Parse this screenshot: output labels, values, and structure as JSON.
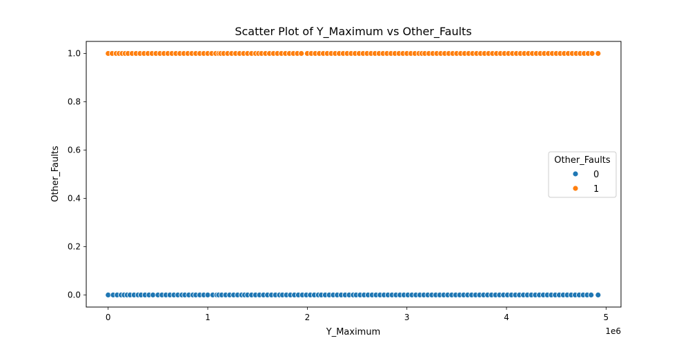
{
  "chart_data": {
    "type": "scatter",
    "title": "Scatter Plot of Y_Maximum vs Other_Faults",
    "xlabel": "Y_Maximum",
    "ylabel": "Other_Faults",
    "x_offset_label": "1e6",
    "xlim": [
      -220000,
      5150000
    ],
    "ylim": [
      -0.05,
      1.05
    ],
    "x_ticks": [
      0,
      1000000,
      2000000,
      3000000,
      4000000,
      5000000
    ],
    "x_tick_labels": [
      "0",
      "1",
      "2",
      "3",
      "4",
      "5"
    ],
    "y_ticks": [
      0.0,
      0.2,
      0.4,
      0.6,
      0.8,
      1.0
    ],
    "y_tick_labels": [
      "0.0",
      "0.2",
      "0.4",
      "0.6",
      "0.8",
      "1.0"
    ],
    "grid": false,
    "legend": {
      "title": "Other_Faults",
      "placement": "center-right",
      "entries": [
        {
          "label": "0",
          "color": "#1f77b4"
        },
        {
          "label": "1",
          "color": "#ff7f0e"
        }
      ]
    },
    "x_range_observed": [
      0,
      4920000
    ],
    "series": [
      {
        "name": "0",
        "color": "#1f77b4",
        "y": 0,
        "x": [
          0,
          50000,
          90000,
          130000,
          160000,
          190000,
          220000,
          260000,
          300000,
          330000,
          370000,
          410000,
          450000,
          500000,
          540000,
          580000,
          620000,
          660000,
          700000,
          740000,
          770000,
          810000,
          850000,
          880000,
          920000,
          960000,
          1000000,
          1050000,
          1090000,
          1110000,
          1140000,
          1180000,
          1220000,
          1260000,
          1300000,
          1340000,
          1370000,
          1400000,
          1440000,
          1480000,
          1520000,
          1560000,
          1600000,
          1640000,
          1680000,
          1720000,
          1750000,
          1790000,
          1830000,
          1870000,
          1910000,
          1950000,
          1990000,
          2030000,
          2070000,
          2110000,
          2140000,
          2180000,
          2220000,
          2260000,
          2300000,
          2340000,
          2380000,
          2420000,
          2460000,
          2490000,
          2530000,
          2570000,
          2610000,
          2650000,
          2690000,
          2730000,
          2770000,
          2810000,
          2850000,
          2890000,
          2930000,
          2970000,
          3010000,
          3050000,
          3090000,
          3130000,
          3170000,
          3210000,
          3250000,
          3290000,
          3330000,
          3370000,
          3410000,
          3450000,
          3490000,
          3530000,
          3570000,
          3610000,
          3650000,
          3690000,
          3730000,
          3770000,
          3810000,
          3850000,
          3890000,
          3930000,
          3970000,
          4010000,
          4050000,
          4090000,
          4130000,
          4170000,
          4210000,
          4250000,
          4290000,
          4330000,
          4370000,
          4410000,
          4450000,
          4490000,
          4530000,
          4570000,
          4610000,
          4650000,
          4690000,
          4730000,
          4770000,
          4810000,
          4850000,
          4920000
        ]
      },
      {
        "name": "1",
        "color": "#ff7f0e",
        "y": 1,
        "x": [
          0,
          40000,
          80000,
          110000,
          140000,
          170000,
          200000,
          240000,
          280000,
          320000,
          360000,
          400000,
          440000,
          480000,
          520000,
          560000,
          600000,
          640000,
          680000,
          720000,
          760000,
          800000,
          840000,
          880000,
          920000,
          960000,
          1000000,
          1040000,
          1080000,
          1110000,
          1130000,
          1160000,
          1200000,
          1240000,
          1280000,
          1320000,
          1360000,
          1400000,
          1440000,
          1480000,
          1510000,
          1540000,
          1580000,
          1620000,
          1660000,
          1700000,
          1740000,
          1780000,
          1820000,
          1860000,
          1900000,
          1940000,
          2000000,
          2040000,
          2080000,
          2120000,
          2160000,
          2200000,
          2240000,
          2280000,
          2320000,
          2360000,
          2400000,
          2440000,
          2480000,
          2520000,
          2560000,
          2600000,
          2640000,
          2680000,
          2720000,
          2760000,
          2800000,
          2840000,
          2880000,
          2920000,
          2960000,
          3000000,
          3040000,
          3080000,
          3120000,
          3150000,
          3180000,
          3220000,
          3260000,
          3300000,
          3340000,
          3380000,
          3420000,
          3460000,
          3500000,
          3540000,
          3580000,
          3620000,
          3660000,
          3700000,
          3740000,
          3780000,
          3820000,
          3860000,
          3900000,
          3940000,
          3980000,
          4020000,
          4060000,
          4100000,
          4140000,
          4180000,
          4220000,
          4260000,
          4300000,
          4340000,
          4380000,
          4420000,
          4460000,
          4500000,
          4540000,
          4580000,
          4620000,
          4660000,
          4700000,
          4740000,
          4780000,
          4820000,
          4860000,
          4920000
        ]
      }
    ]
  }
}
